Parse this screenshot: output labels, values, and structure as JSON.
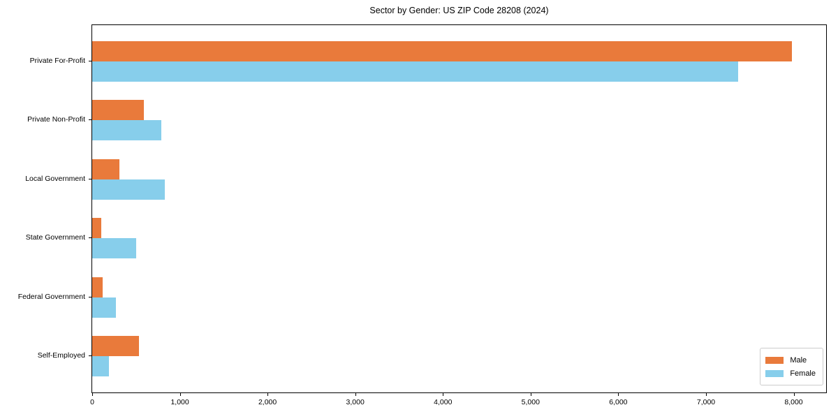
{
  "title": "Sector by Gender: US ZIP Code 28208 (2024)",
  "colors": {
    "male": "#e97a3b",
    "female": "#87ceeb",
    "spine": "#000000",
    "legend_border": "#cccccc",
    "background": "#ffffff",
    "text": "#000000"
  },
  "legend": {
    "position": "lower right",
    "items": [
      {
        "label": "Male",
        "color": "#e97a3b"
      },
      {
        "label": "Female",
        "color": "#87ceeb"
      }
    ]
  },
  "chart_data": {
    "type": "bar",
    "orientation": "horizontal",
    "title": "Sector by Gender: US ZIP Code 28208 (2024)",
    "categories": [
      "Private For-Profit",
      "Private Non-Profit",
      "Local Government",
      "State Government",
      "Federal Government",
      "Self-Employed"
    ],
    "series": [
      {
        "name": "Male",
        "color": "#e97a3b",
        "values": [
          7980,
          590,
          310,
          100,
          120,
          530
        ]
      },
      {
        "name": "Female",
        "color": "#87ceeb",
        "values": [
          7370,
          790,
          830,
          500,
          270,
          190
        ]
      }
    ],
    "xlabel": "",
    "ylabel": "",
    "xlim": [
      0,
      8370
    ],
    "x_ticks": [
      0,
      1000,
      2000,
      3000,
      4000,
      5000,
      6000,
      7000,
      8000
    ],
    "x_tick_labels": [
      "0",
      "1,000",
      "2,000",
      "3,000",
      "4,000",
      "5,000",
      "6,000",
      "7,000",
      "8,000"
    ],
    "grid": false,
    "legend_position": "lower right"
  }
}
